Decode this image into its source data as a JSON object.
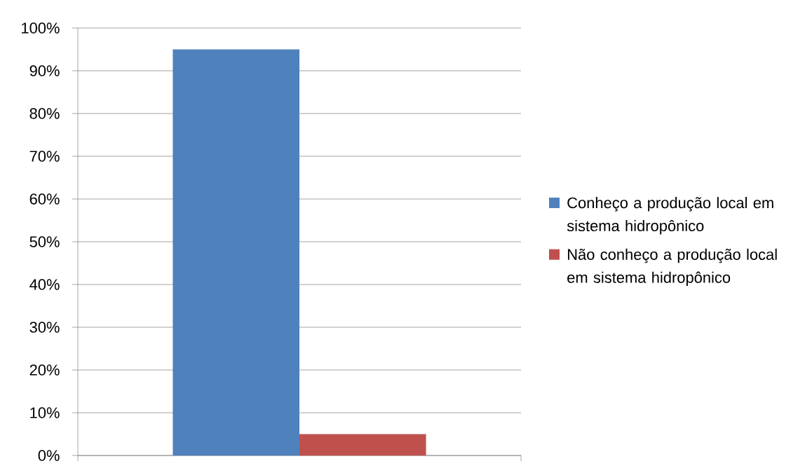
{
  "chart_data": {
    "type": "bar",
    "categories": [
      null
    ],
    "series": [
      {
        "name": "Conheço a produção local em sistema hidropônico",
        "color": "#4f81bd",
        "values": [
          95
        ]
      },
      {
        "name": "Não conheço a produção local em sistema hidropônico",
        "color": "#c0504d",
        "values": [
          5
        ]
      }
    ],
    "ylim": [
      0,
      100
    ],
    "yticks": [
      {
        "value": 0,
        "label": "0%"
      },
      {
        "value": 10,
        "label": "10%"
      },
      {
        "value": 20,
        "label": "20%"
      },
      {
        "value": 30,
        "label": "30%"
      },
      {
        "value": 40,
        "label": "40%"
      },
      {
        "value": 50,
        "label": "50%"
      },
      {
        "value": 60,
        "label": "60%"
      },
      {
        "value": 70,
        "label": "70%"
      },
      {
        "value": 80,
        "label": "80%"
      },
      {
        "value": 90,
        "label": "90%"
      },
      {
        "value": 100,
        "label": "100%"
      }
    ],
    "grid": "y",
    "legend": "right"
  }
}
